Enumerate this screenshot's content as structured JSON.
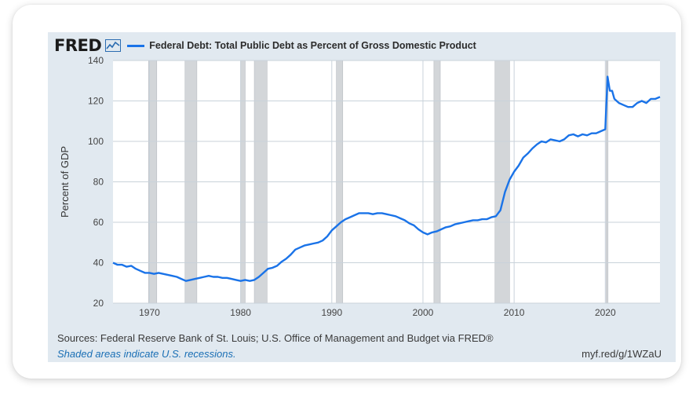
{
  "header": {
    "logo": "FRED",
    "logo_icon": "line-chart-icon",
    "series_title": "Federal Debt: Total Public Debt as Percent of Gross Domestic Product"
  },
  "footer": {
    "sources": "Sources: Federal Reserve Bank of St. Louis; U.S. Office of Management and Budget via FRED®",
    "recession_note": "Shaded areas indicate U.S. recessions.",
    "short_link": "myf.red/g/1WZaU"
  },
  "colors": {
    "line": "#1a73e8",
    "panel_bg": "#e1e9f0",
    "plot_bg": "#ffffff",
    "recession": "#d3d6d9",
    "grid": "#c9d2da"
  },
  "chart_data": {
    "type": "line",
    "title": "Federal Debt: Total Public Debt as Percent of Gross Domestic Product",
    "xlabel": "",
    "ylabel": "Percent of GDP",
    "xlim": [
      1966,
      2026
    ],
    "ylim": [
      20,
      140
    ],
    "x_ticks": [
      1970,
      1980,
      1990,
      2000,
      2010,
      2020
    ],
    "y_ticks": [
      20,
      40,
      60,
      80,
      100,
      120,
      140
    ],
    "grid": true,
    "recessions": [
      [
        1969.9,
        1970.8
      ],
      [
        1973.9,
        1975.2
      ],
      [
        1980.0,
        1980.5
      ],
      [
        1981.5,
        1982.9
      ],
      [
        1990.5,
        1991.2
      ],
      [
        2001.2,
        2001.9
      ],
      [
        2007.9,
        2009.5
      ],
      [
        2020.1,
        2020.3
      ]
    ],
    "series": [
      {
        "name": "Federal Debt: Total Public Debt as Percent of Gross Domestic Product",
        "x": [
          1966.0,
          1966.5,
          1967.0,
          1967.5,
          1968.0,
          1968.5,
          1969.0,
          1969.5,
          1970.0,
          1970.5,
          1971.0,
          1971.5,
          1972.0,
          1972.5,
          1973.0,
          1973.5,
          1974.0,
          1974.5,
          1975.0,
          1975.5,
          1976.0,
          1976.5,
          1977.0,
          1977.5,
          1978.0,
          1978.5,
          1979.0,
          1979.5,
          1980.0,
          1980.5,
          1981.0,
          1981.5,
          1982.0,
          1982.5,
          1983.0,
          1983.5,
          1984.0,
          1984.5,
          1985.0,
          1985.5,
          1986.0,
          1986.5,
          1987.0,
          1987.5,
          1988.0,
          1988.5,
          1989.0,
          1989.5,
          1990.0,
          1990.5,
          1991.0,
          1991.5,
          1992.0,
          1992.5,
          1993.0,
          1993.5,
          1994.0,
          1994.5,
          1995.0,
          1995.5,
          1996.0,
          1996.5,
          1997.0,
          1997.5,
          1998.0,
          1998.5,
          1999.0,
          1999.5,
          2000.0,
          2000.5,
          2001.0,
          2001.5,
          2002.0,
          2002.5,
          2003.0,
          2003.5,
          2004.0,
          2004.5,
          2005.0,
          2005.5,
          2006.0,
          2006.5,
          2007.0,
          2007.5,
          2008.0,
          2008.5,
          2009.0,
          2009.5,
          2010.0,
          2010.5,
          2011.0,
          2011.5,
          2012.0,
          2012.5,
          2013.0,
          2013.5,
          2014.0,
          2014.5,
          2015.0,
          2015.5,
          2016.0,
          2016.5,
          2017.0,
          2017.5,
          2018.0,
          2018.5,
          2019.0,
          2019.5,
          2020.0,
          2020.25,
          2020.5,
          2020.75,
          2021.0,
          2021.5,
          2022.0,
          2022.5,
          2023.0,
          2023.5,
          2024.0,
          2024.5,
          2025.0,
          2025.5,
          2026.0
        ],
        "values": [
          40,
          39,
          39,
          38,
          38.5,
          37,
          36,
          35,
          35,
          34.5,
          35,
          34.5,
          34,
          33.5,
          33,
          32,
          31,
          31.5,
          32,
          32.5,
          33,
          33.5,
          33,
          33,
          32.5,
          32.5,
          32,
          31.5,
          31,
          31.5,
          31,
          31.5,
          33,
          35,
          37,
          37.5,
          38.5,
          40.5,
          42,
          44,
          46.5,
          47.5,
          48.5,
          49,
          49.5,
          50,
          51,
          53,
          56,
          58,
          60,
          61.5,
          62.5,
          63.5,
          64.5,
          64.5,
          64.5,
          64,
          64.5,
          64.5,
          64,
          63.5,
          63,
          62,
          61,
          59.5,
          58.5,
          56.5,
          55,
          54,
          55,
          55.5,
          56.5,
          57.5,
          58,
          59,
          59.5,
          60,
          60.5,
          61,
          61,
          61.5,
          61.5,
          62.5,
          63,
          66,
          75,
          81,
          85,
          88,
          92,
          94,
          96.5,
          98.5,
          100,
          99.5,
          101,
          100.5,
          100,
          101,
          103,
          103.5,
          102.5,
          103.5,
          103,
          104,
          104,
          105,
          106,
          132,
          125,
          125,
          121,
          119,
          118,
          117,
          117,
          119,
          120,
          119,
          121,
          121,
          122
        ]
      }
    ]
  }
}
